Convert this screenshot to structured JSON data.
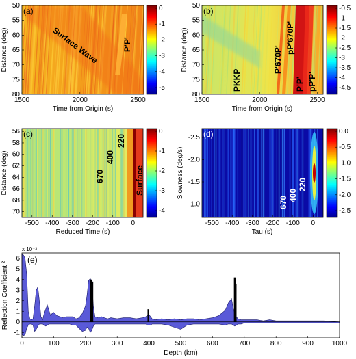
{
  "colors": {
    "frame": "#000000",
    "fill_e": "#5a5ad8",
    "spike_e": "#000000"
  },
  "panels": [
    {
      "id": "a",
      "tag": "(a)",
      "xlabel": "Time from Origin (s)",
      "ylabel": "Distance (deg)",
      "xticks": [
        "1500",
        "2000",
        "2500"
      ],
      "yticks": [
        "50",
        "55",
        "60",
        "65",
        "70",
        "75",
        "80"
      ],
      "cbar_ticks": [
        "0",
        "-1",
        "-2",
        "-3",
        "-4",
        "-5"
      ],
      "annotations": [
        "Surface Wave",
        "P'P'"
      ]
    },
    {
      "id": "b",
      "tag": "(b)",
      "xlabel": "Time from Origin (s)",
      "ylabel": "Distance (deg)",
      "xticks": [
        "1500",
        "2000",
        "2500"
      ],
      "yticks": [
        "50",
        "55",
        "60",
        "65",
        "70",
        "75",
        "80"
      ],
      "cbar_ticks": [
        "-0.5",
        "-1",
        "-1.5",
        "-2",
        "-2.5",
        "-3",
        "-3.5",
        "-4",
        "-4.5"
      ],
      "annotations": [
        "PKKP",
        "P'670P'",
        "pP'670P'",
        "P'P'",
        "pP'P'"
      ]
    },
    {
      "id": "c",
      "tag": "(c)",
      "xlabel": "Reduced Time (s)",
      "ylabel": "Distance (deg)",
      "xticks": [
        "-500",
        "-400",
        "-300",
        "-200",
        "-100",
        "0"
      ],
      "yticks": [
        "56",
        "58",
        "60",
        "62",
        "64",
        "66",
        "68",
        "70"
      ],
      "cbar_ticks": [
        "0",
        "-1",
        "-2",
        "-3",
        "-4"
      ],
      "annotations": [
        "670",
        "400",
        "220",
        "Surface"
      ]
    },
    {
      "id": "d",
      "tag": "(d)",
      "xlabel": "Tau (s)",
      "ylabel": "Slowness (deg/s)",
      "xticks": [
        "-500",
        "-400",
        "-300",
        "-200",
        "-100",
        "0"
      ],
      "yticks": [
        "-2.5",
        "-2.0",
        "-1.5",
        "-1.0"
      ],
      "cbar_ticks": [
        "0.0",
        "-0.5",
        "-1.0",
        "-1.5",
        "-2.0",
        "-2.5"
      ],
      "annotations": [
        "670",
        "400",
        "220"
      ]
    }
  ],
  "panel_e": {
    "tag": "(e)",
    "xlabel": "Depth (km)",
    "ylabel": "Reflection Coefficient ²",
    "exponent": "x 10⁻³",
    "xticks": [
      "0",
      "100",
      "200",
      "300",
      "400",
      "500",
      "600",
      "700",
      "800",
      "900",
      "1000"
    ],
    "yticks": [
      "6",
      "5",
      "4",
      "3",
      "2",
      "1",
      "0",
      "-1"
    ]
  },
  "chart_data": [
    {
      "type": "heatmap",
      "panel": "a",
      "title": "",
      "xlabel": "Time from Origin (s)",
      "ylabel": "Distance (deg)",
      "xlim": [
        1500,
        2550
      ],
      "ylim": [
        50,
        80
      ],
      "y_reversed": true,
      "color_range": [
        -5.5,
        0
      ],
      "features": [
        {
          "label": "Surface Wave",
          "from": {
            "t": 1700,
            "dist": 52
          },
          "to": {
            "t": 2200,
            "dist": 80
          }
        },
        {
          "label": "P'P'",
          "from": {
            "t": 2390,
            "dist": 58
          },
          "to": {
            "t": 2340,
            "dist": 72
          }
        }
      ]
    },
    {
      "type": "heatmap",
      "panel": "b",
      "title": "",
      "xlabel": "Time from Origin (s)",
      "ylabel": "Distance (deg)",
      "xlim": [
        1500,
        2550
      ],
      "ylim": [
        50,
        80
      ],
      "y_reversed": true,
      "color_range": [
        -4.8,
        0
      ],
      "features": [
        {
          "label": "PKKP",
          "from": {
            "t": 1550,
            "dist": 52
          },
          "to": {
            "t": 1950,
            "dist": 80
          }
        },
        {
          "label": "P'670P'",
          "from": {
            "t": 2230,
            "dist": 50
          },
          "to": {
            "t": 2180,
            "dist": 80
          }
        },
        {
          "label": "pP'670P'",
          "from": {
            "t": 2290,
            "dist": 50
          },
          "to": {
            "t": 2240,
            "dist": 80
          }
        },
        {
          "label": "P'P'",
          "from": {
            "t": 2390,
            "dist": 50
          },
          "to": {
            "t": 2360,
            "dist": 80
          }
        },
        {
          "label": "pP'P'",
          "from": {
            "t": 2440,
            "dist": 50
          },
          "to": {
            "t": 2410,
            "dist": 80
          }
        }
      ]
    },
    {
      "type": "heatmap",
      "panel": "c",
      "title": "",
      "xlabel": "Reduced Time (s)",
      "ylabel": "Distance (deg)",
      "xlim": [
        -550,
        50
      ],
      "ylim": [
        55.5,
        71
      ],
      "y_reversed": true,
      "color_range": [
        -4.3,
        0
      ],
      "features": [
        {
          "label": "670",
          "t": -160
        },
        {
          "label": "400",
          "t": -95
        },
        {
          "label": "220",
          "t": -55
        },
        {
          "label": "Surface",
          "t": 0
        }
      ]
    },
    {
      "type": "heatmap",
      "panel": "d",
      "title": "",
      "xlabel": "Tau (s)",
      "ylabel": "Slowness (deg/s)",
      "xlim": [
        -550,
        50
      ],
      "ylim": [
        -2.7,
        -0.7
      ],
      "y_reversed": true,
      "color_range": [
        -2.5,
        0.2
      ],
      "features": [
        {
          "label": "670",
          "tau": -160,
          "slowness": -1.5
        },
        {
          "label": "400",
          "tau": -95,
          "slowness": -1.5
        },
        {
          "label": "220",
          "tau": -55,
          "slowness": -1.5
        },
        {
          "label": "",
          "tau": 0,
          "slowness": -1.5
        }
      ]
    },
    {
      "type": "area",
      "panel": "e",
      "title": "",
      "xlabel": "Depth (km)",
      "ylabel": "Reflection Coefficient ²",
      "xlim": [
        0,
        1000
      ],
      "ylim": [
        -1.5,
        6.5
      ],
      "y_multiplier": "1e-3",
      "series": [
        {
          "x": [
            0,
            5,
            10,
            15,
            20,
            25,
            30,
            35,
            40,
            45,
            50,
            55,
            60,
            65,
            70,
            75,
            80,
            85,
            90,
            95,
            100,
            110,
            120,
            130,
            140,
            150,
            160,
            170,
            180,
            190,
            200,
            205,
            210,
            215,
            220,
            225,
            230,
            240,
            250,
            260,
            270,
            280,
            300,
            320,
            340,
            360,
            380,
            390,
            395,
            400,
            405,
            410,
            420,
            440,
            460,
            480,
            500,
            520,
            540,
            560,
            580,
            600,
            620,
            640,
            650,
            660,
            665,
            670,
            675,
            680,
            690,
            700,
            720,
            740,
            760,
            780,
            800,
            850,
            900,
            950,
            1000
          ],
          "upper": [
            6.4,
            6.3,
            6.0,
            4.5,
            1.0,
            0.3,
            0.2,
            0.3,
            1.5,
            3.0,
            3.3,
            2.0,
            0.5,
            0.2,
            0.8,
            1.2,
            1.6,
            1.1,
            0.6,
            0.8,
            0.9,
            0.6,
            0.5,
            0.4,
            0.5,
            0.5,
            0.5,
            0.3,
            0.4,
            0.8,
            1.5,
            2.5,
            3.9,
            4.1,
            3.8,
            1.5,
            0.5,
            0.4,
            0.5,
            0.4,
            0.3,
            0.4,
            0.3,
            0.4,
            0.4,
            0.3,
            0.4,
            0.5,
            0.6,
            0.7,
            0.5,
            0.3,
            0.2,
            0.3,
            0.2,
            0.3,
            0.2,
            0.3,
            0.3,
            0.2,
            0.3,
            0.4,
            0.6,
            1.1,
            1.8,
            2.2,
            1.3,
            0.8,
            0.5,
            0.3,
            0.2,
            0.2,
            0.2,
            0.2,
            0.1,
            0.2,
            0.1,
            0.1,
            0.1,
            0.1,
            0.0
          ],
          "lower": [
            -1.2,
            -1.3,
            -1.2,
            -0.6,
            -0.3,
            -0.2,
            -0.2,
            -0.3,
            -0.9,
            -0.7,
            -0.4,
            -0.2,
            -0.2,
            -0.2,
            -0.3,
            -0.4,
            -0.3,
            -0.2,
            -0.2,
            -0.2,
            -0.2,
            -0.2,
            -0.2,
            -0.2,
            -0.2,
            -0.2,
            -0.3,
            -0.3,
            -0.6,
            -0.9,
            -0.8,
            -0.5,
            -0.6,
            -1.0,
            -0.8,
            -0.4,
            -0.2,
            -0.2,
            -0.2,
            -0.2,
            -0.2,
            -0.2,
            -0.2,
            -0.2,
            -0.2,
            -0.2,
            -0.2,
            -0.2,
            -0.3,
            -0.3,
            -0.3,
            -0.2,
            -0.2,
            -0.2,
            -0.3,
            -0.5,
            -0.7,
            -0.3,
            -0.2,
            -0.2,
            -0.2,
            -0.2,
            -0.2,
            -0.3,
            -0.2,
            -0.2,
            -0.3,
            -0.4,
            -0.3,
            -0.2,
            -0.2,
            -0.1,
            -0.1,
            -0.1,
            -0.1,
            -0.1,
            -0.1,
            -0.1,
            -0.1,
            -0.1,
            -0.1
          ]
        },
        {
          "type": "bar",
          "x": [
            218,
            222,
            398,
            670,
            673
          ],
          "values": [
            4.0,
            3.8,
            1.2,
            4.2,
            3.6
          ]
        }
      ]
    }
  ]
}
